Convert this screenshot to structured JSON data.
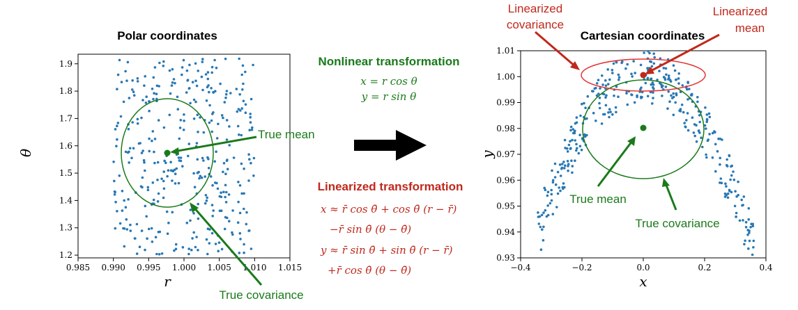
{
  "colors": {
    "points": "#2878b4",
    "green": "#1a7a1a",
    "red": "#c0281c",
    "red_ellipse": "#e63232",
    "axis": "#000000"
  },
  "left_plot": {
    "title": "Polar coordinates",
    "xlabel": "r",
    "ylabel": "θ",
    "xlim": [
      0.985,
      1.015
    ],
    "ylim": [
      1.19,
      1.935
    ],
    "xticks": [
      "0.985",
      "0.990",
      "0.995",
      "1.000",
      "1.005",
      "1.010",
      "1.015"
    ],
    "xtick_values": [
      0.985,
      0.99,
      0.995,
      1.0,
      1.005,
      1.01,
      1.015
    ],
    "yticks": [
      "1.2",
      "1.3",
      "1.4",
      "1.5",
      "1.6",
      "1.7",
      "1.8",
      "1.9"
    ],
    "ytick_values": [
      1.2,
      1.3,
      1.4,
      1.5,
      1.6,
      1.7,
      1.8,
      1.9
    ],
    "mean": [
      1.0,
      1.5708
    ],
    "true_mean_label": "True mean",
    "true_covariance_label": "True covariance"
  },
  "right_plot": {
    "title": "Cartesian coordinates",
    "xlabel": "x",
    "ylabel": "y",
    "xlim": [
      -0.4,
      0.4
    ],
    "ylim": [
      0.93,
      1.01
    ],
    "xticks": [
      "−0.4",
      "−0.2",
      "0.0",
      "0.2",
      "0.4"
    ],
    "xtick_values": [
      -0.4,
      -0.2,
      0.0,
      0.2,
      0.4
    ],
    "yticks": [
      "0.93",
      "0.94",
      "0.95",
      "0.96",
      "0.97",
      "0.98",
      "0.99",
      "1.00",
      "1.01"
    ],
    "ytick_values": [
      0.93,
      0.94,
      0.95,
      0.96,
      0.97,
      0.98,
      0.99,
      1.0,
      1.01
    ],
    "true_mean": [
      0.0,
      0.98
    ],
    "linearized_mean": [
      0.0,
      1.0
    ],
    "true_mean_label": "True mean",
    "true_covariance_label": "True covariance",
    "linearized_covariance_label": [
      "Linearized",
      "covariance"
    ],
    "linearized_mean_label": [
      "Linearized",
      "mean"
    ]
  },
  "middle": {
    "nonlinear_title": "Nonlinear transformation",
    "nonlinear_eq1": "x = r cos θ",
    "nonlinear_eq2": "y = r sin θ",
    "linearized_title": "Linearized transformation",
    "lin_eq1": "x ≈ r̄ cos θ̄ + cos θ̄ (r − r̄)",
    "lin_eq2": "−r̄ sin θ̄ (θ − θ̄)",
    "lin_eq3": "y ≈ r̄ sin θ̄ + sin θ̄ (r − r̄)",
    "lin_eq4": "+r̄ cos θ̄ (θ − θ̄)"
  }
}
